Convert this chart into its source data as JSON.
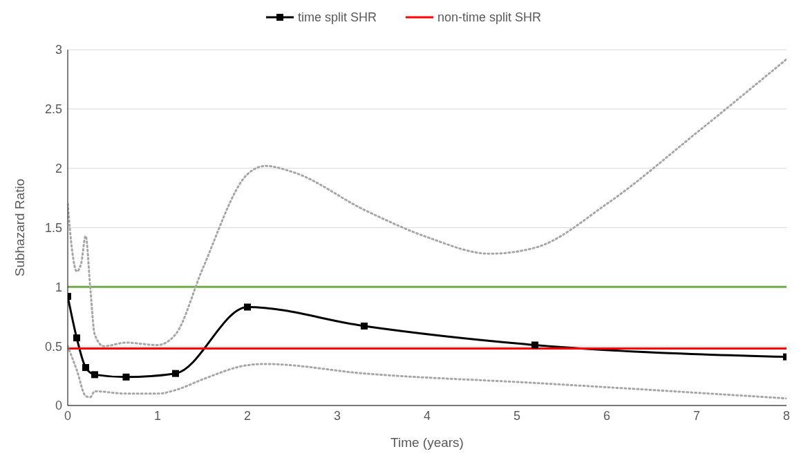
{
  "chart_data": {
    "type": "line",
    "xlabel": "Time (years)",
    "ylabel": "Subhazard Ratio",
    "xlim": [
      0,
      8
    ],
    "xticks": [
      0,
      1,
      2,
      3,
      4,
      5,
      6,
      7,
      8
    ],
    "ylim": [
      0,
      3
    ],
    "yticks": [
      0,
      0.5,
      1,
      1.5,
      2,
      2.5,
      3
    ],
    "grid": "y",
    "legend": "top",
    "line_style": "solid",
    "series": [
      {
        "name": "time split SHR",
        "color": "#000000",
        "marker": "square",
        "x": [
          0,
          0.1,
          0.2,
          0.3,
          0.65,
          1.2,
          2,
          3.3,
          5.2,
          8
        ],
        "values": [
          0.92,
          0.57,
          0.32,
          0.26,
          0.24,
          0.27,
          0.83,
          0.67,
          0.51,
          0.41
        ]
      },
      {
        "name": "non-time split SHR",
        "color": "#ff0000",
        "marker": "none",
        "x": [
          0,
          8
        ],
        "values": [
          0.48,
          0.48
        ]
      },
      {
        "color": "#a6a6a6",
        "marker": "none",
        "line_style": "dotted",
        "x": [
          0,
          0.05,
          0.1,
          0.15,
          0.2,
          0.25,
          0.3,
          0.4,
          0.65,
          1,
          1.2,
          1.5,
          2,
          2.2,
          2.5,
          3.3,
          4,
          4.7,
          5.2,
          6,
          7,
          8
        ],
        "values": [
          1.7,
          1.3,
          1.13,
          1.2,
          1.43,
          1.0,
          0.6,
          0.5,
          0.53,
          0.51,
          0.6,
          1.15,
          1.95,
          2.02,
          1.97,
          1.65,
          1.42,
          1.28,
          1.33,
          1.7,
          2.3,
          2.92
        ]
      },
      {
        "color": "#a6a6a6",
        "marker": "none",
        "line_style": "dotted",
        "x": [
          0,
          0.1,
          0.2,
          0.25,
          0.3,
          0.65,
          1,
          1.2,
          1.5,
          2,
          2.2,
          3.3,
          5.2,
          8
        ],
        "values": [
          0.5,
          0.3,
          0.08,
          0.07,
          0.12,
          0.1,
          0.1,
          0.13,
          0.22,
          0.34,
          0.35,
          0.27,
          0.19,
          0.06
        ]
      }
    ],
    "ref_lines": [
      {
        "axis": "y",
        "value": 1,
        "color": "#70ad47"
      }
    ]
  }
}
